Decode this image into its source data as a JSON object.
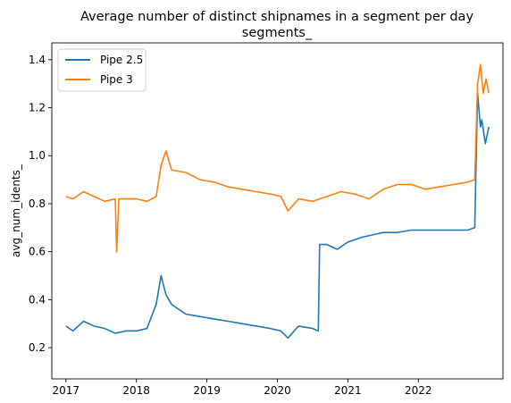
{
  "chart_data": {
    "type": "line",
    "title": "Average number of distinct shipnames in a segment per day",
    "subtitle": "segments_",
    "xlabel": "",
    "ylabel": "avg_num_idents_",
    "xlim": [
      2016.8,
      2023.2
    ],
    "ylim": [
      0.07,
      1.47
    ],
    "x_ticks": [
      {
        "value": 2017,
        "label": "2017"
      },
      {
        "value": 2018,
        "label": "2018"
      },
      {
        "value": 2019,
        "label": "2019"
      },
      {
        "value": 2020,
        "label": "2020"
      },
      {
        "value": 2021,
        "label": "2021"
      },
      {
        "value": 2022,
        "label": "2022"
      }
    ],
    "y_ticks": [
      {
        "value": 0.2,
        "label": "0.2"
      },
      {
        "value": 0.4,
        "label": "0.4"
      },
      {
        "value": 0.6,
        "label": "0.6"
      },
      {
        "value": 0.8,
        "label": "0.8"
      },
      {
        "value": 1.0,
        "label": "1.0"
      },
      {
        "value": 1.2,
        "label": "1.2"
      },
      {
        "value": 1.4,
        "label": "1.4"
      }
    ],
    "legend_position": "top-left",
    "grid": false,
    "series": [
      {
        "name": "Pipe 2.5",
        "color": "#1f77b4",
        "x": [
          2017.0,
          2017.1,
          2017.25,
          2017.4,
          2017.55,
          2017.7,
          2017.85,
          2018.0,
          2018.15,
          2018.28,
          2018.35,
          2018.42,
          2018.5,
          2018.7,
          2018.9,
          2019.1,
          2019.3,
          2019.5,
          2019.7,
          2019.9,
          2020.05,
          2020.15,
          2020.3,
          2020.5,
          2020.58,
          2020.6,
          2020.7,
          2020.85,
          2021.0,
          2021.1,
          2021.2,
          2021.35,
          2021.5,
          2021.7,
          2021.9,
          2022.1,
          2022.3,
          2022.5,
          2022.7,
          2022.8,
          2022.84,
          2022.88,
          2022.9,
          2022.95,
          2023.0
        ],
        "y": [
          0.29,
          0.27,
          0.31,
          0.29,
          0.28,
          0.26,
          0.27,
          0.27,
          0.28,
          0.38,
          0.5,
          0.42,
          0.38,
          0.34,
          0.33,
          0.32,
          0.31,
          0.3,
          0.29,
          0.28,
          0.27,
          0.24,
          0.29,
          0.28,
          0.27,
          0.63,
          0.63,
          0.61,
          0.64,
          0.65,
          0.66,
          0.67,
          0.68,
          0.68,
          0.69,
          0.69,
          0.69,
          0.69,
          0.69,
          0.7,
          1.26,
          1.12,
          1.15,
          1.05,
          1.12
        ]
      },
      {
        "name": "Pipe 3",
        "color": "#ff7f0e",
        "x": [
          2017.0,
          2017.1,
          2017.25,
          2017.4,
          2017.55,
          2017.7,
          2017.72,
          2017.75,
          2017.85,
          2018.0,
          2018.15,
          2018.28,
          2018.35,
          2018.42,
          2018.5,
          2018.7,
          2018.9,
          2019.1,
          2019.3,
          2019.5,
          2019.7,
          2019.9,
          2020.05,
          2020.15,
          2020.3,
          2020.5,
          2020.7,
          2020.9,
          2021.1,
          2021.3,
          2021.5,
          2021.7,
          2021.9,
          2022.1,
          2022.3,
          2022.5,
          2022.7,
          2022.8,
          2022.84,
          2022.88,
          2022.92,
          2022.96,
          2023.0
        ],
        "y": [
          0.83,
          0.82,
          0.85,
          0.83,
          0.81,
          0.82,
          0.6,
          0.82,
          0.82,
          0.82,
          0.81,
          0.83,
          0.96,
          1.02,
          0.94,
          0.93,
          0.9,
          0.89,
          0.87,
          0.86,
          0.85,
          0.84,
          0.83,
          0.77,
          0.82,
          0.81,
          0.83,
          0.85,
          0.84,
          0.82,
          0.86,
          0.88,
          0.88,
          0.86,
          0.87,
          0.88,
          0.89,
          0.9,
          1.3,
          1.38,
          1.26,
          1.32,
          1.26
        ]
      }
    ]
  }
}
